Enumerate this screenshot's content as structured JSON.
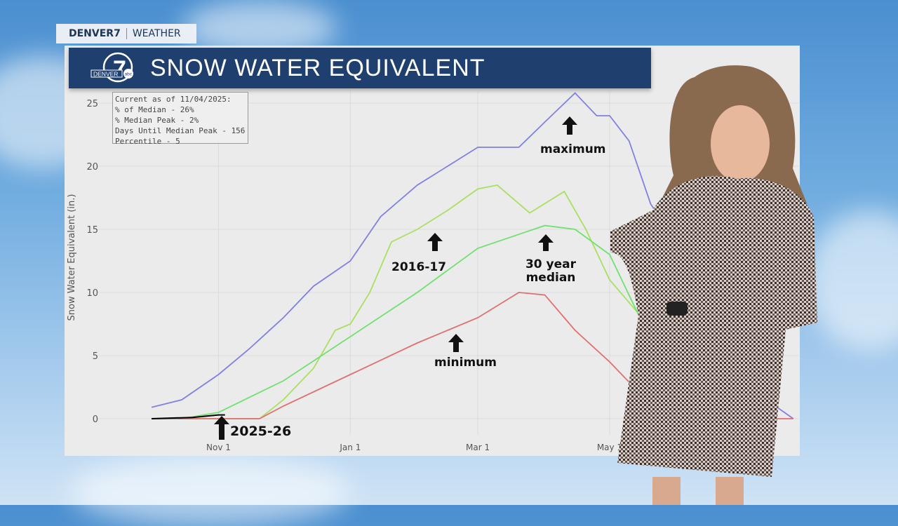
{
  "bug": {
    "brand": "DENVER7",
    "section": "WEATHER"
  },
  "header": {
    "title": "SNOW WATER EQUIVALENT",
    "logo_text": "DENVER 7 abc",
    "color": "#1f3f6e"
  },
  "infobox": {
    "lines": [
      "Current as of 11/04/2025:",
      "% of Median - 26%",
      "% Median Peak - 2%",
      "Days Until Median Peak - 156",
      "Percentile - 5"
    ]
  },
  "annotations": {
    "maximum": "maximum",
    "season_2016": "2016-17",
    "median": "30 year median",
    "minimum": "minimum",
    "current": "2025-26"
  },
  "chart_data": {
    "type": "line",
    "ylabel": "Snow Water Equivalent (in.)",
    "ylim": [
      0,
      25
    ],
    "yticks": [
      0,
      5,
      10,
      15,
      20,
      25
    ],
    "xticks": [
      "Nov 1",
      "Jan 1",
      "Mar 1",
      "May 1"
    ],
    "grid": true,
    "series": [
      {
        "name": "maximum",
        "color": "#8080e0",
        "points": [
          [
            "Oct 1",
            0.9
          ],
          [
            "Oct 15",
            1.5
          ],
          [
            "Nov 1",
            3.5
          ],
          [
            "Nov 15",
            5.5
          ],
          [
            "Dec 1",
            8
          ],
          [
            "Dec 15",
            10.5
          ],
          [
            "Jan 1",
            12.5
          ],
          [
            "Jan 15",
            16
          ],
          [
            "Feb 1",
            18.5
          ],
          [
            "Feb 15",
            20
          ],
          [
            "Mar 1",
            21.5
          ],
          [
            "Mar 20",
            21.5
          ],
          [
            "Apr 1",
            23.5
          ],
          [
            "Apr 15",
            25.8
          ],
          [
            "Apr 25",
            24
          ],
          [
            "May 1",
            24
          ],
          [
            "May 10",
            22
          ],
          [
            "May 20",
            17
          ],
          [
            "Jun 1",
            14
          ],
          [
            "Jun 15",
            9
          ],
          [
            "Jul 1",
            4.5
          ],
          [
            "Jul 15",
            1.2
          ],
          [
            "Jul 25",
            0
          ]
        ]
      },
      {
        "name": "2016-17",
        "color": "#a8e060",
        "points": [
          [
            "Oct 1",
            0
          ],
          [
            "Nov 20",
            0
          ],
          [
            "Dec 1",
            1.5
          ],
          [
            "Dec 15",
            4
          ],
          [
            "Dec 25",
            7
          ],
          [
            "Jan 1",
            7.5
          ],
          [
            "Jan 10",
            10
          ],
          [
            "Jan 20",
            14
          ],
          [
            "Feb 1",
            15
          ],
          [
            "Feb 15",
            16.5
          ],
          [
            "Mar 1",
            18.2
          ],
          [
            "Mar 10",
            18.5
          ],
          [
            "Mar 25",
            16.3
          ],
          [
            "Apr 10",
            18
          ],
          [
            "Apr 20",
            15
          ],
          [
            "May 1",
            11
          ],
          [
            "May 16",
            8
          ],
          [
            "Jun 1",
            3
          ],
          [
            "Jun 10",
            0
          ]
        ]
      },
      {
        "name": "30 year median",
        "color": "#70e070",
        "points": [
          [
            "Oct 1",
            0
          ],
          [
            "Oct 15",
            0
          ],
          [
            "Nov 1",
            0.5
          ],
          [
            "Dec 1",
            3
          ],
          [
            "Jan 1",
            6.5
          ],
          [
            "Feb 1",
            10
          ],
          [
            "Mar 1",
            13.5
          ],
          [
            "Apr 1",
            15.3
          ],
          [
            "Apr 15",
            15
          ],
          [
            "May 1",
            13
          ],
          [
            "May 15",
            8
          ],
          [
            "Jun 1",
            3
          ],
          [
            "Jun 20",
            0
          ]
        ]
      },
      {
        "name": "minimum",
        "color": "#e07070",
        "points": [
          [
            "Oct 1",
            0
          ],
          [
            "Nov 20",
            0
          ],
          [
            "Dec 1",
            1
          ],
          [
            "Jan 1",
            3.5
          ],
          [
            "Feb 1",
            6
          ],
          [
            "Mar 1",
            8
          ],
          [
            "Mar 20",
            10
          ],
          [
            "Apr 1",
            9.8
          ],
          [
            "Apr 15",
            7
          ],
          [
            "May 1",
            4.5
          ],
          [
            "May 15",
            2
          ],
          [
            "Jun 1",
            0
          ],
          [
            "Jul 25",
            0
          ]
        ]
      },
      {
        "name": "2025-26",
        "color": "#000000",
        "points": [
          [
            "Oct 1",
            0
          ],
          [
            "Oct 20",
            0.1
          ],
          [
            "Nov 1",
            0.3
          ],
          [
            "Nov 4",
            0.3
          ]
        ]
      }
    ]
  }
}
